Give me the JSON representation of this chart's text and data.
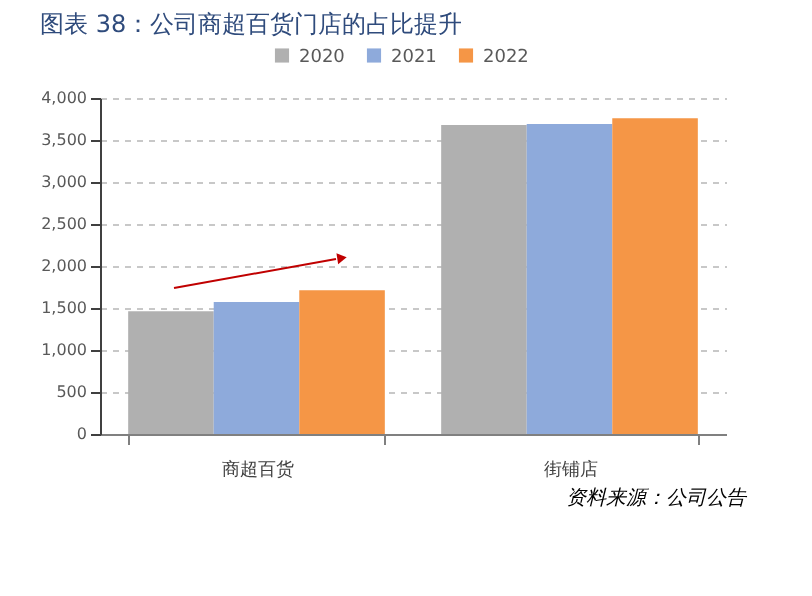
{
  "chart_data": {
    "type": "bar",
    "title": "图表 38：公司商超百货门店的占比提升",
    "categories": [
      "商超百货",
      "街铺店"
    ],
    "series": [
      {
        "name": "2020",
        "color": "#b0b0b0",
        "values": [
          1460,
          3680
        ]
      },
      {
        "name": "2021",
        "color": "#8eaadb",
        "values": [
          1570,
          3690
        ]
      },
      {
        "name": "2022",
        "color": "#f59646",
        "values": [
          1710,
          3760
        ]
      }
    ],
    "ylim": [
      0,
      4000
    ],
    "yticks": [
      0,
      500,
      {
        "value": 1000,
        "label": "1,000"
      },
      {
        "value": 1500,
        "label": "1,500"
      },
      {
        "value": 2000,
        "label": "2,000"
      },
      {
        "value": 2500,
        "label": "2,500"
      },
      {
        "value": 3000,
        "label": "3,000"
      },
      {
        "value": 3500,
        "label": "3,500"
      },
      {
        "value": 4000,
        "label": "4,000"
      }
    ],
    "grid": "y",
    "legend": "top",
    "annotations": [
      "资料来源：公司公告"
    ]
  }
}
